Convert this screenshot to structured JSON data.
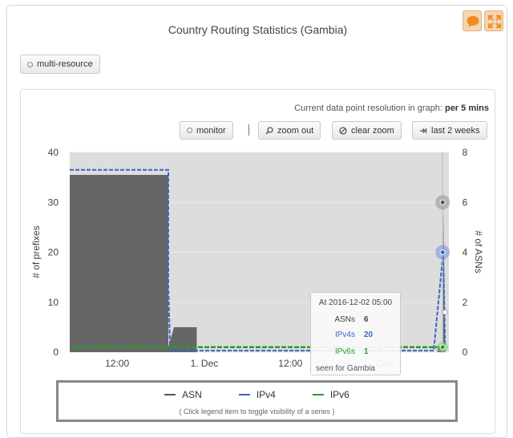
{
  "header": {
    "title": "Country Routing Statistics (Gambia)",
    "feedback_icon": "speech-bubble-icon",
    "fullscreen_icon": "expand-arrows-icon",
    "accent_color": "#f0a04b"
  },
  "toolbar": {
    "multi_resource_label": "multi-resource",
    "resolution_prefix": "Current data point resolution in graph:",
    "resolution_value": "per 5 mins",
    "monitor_label": "monitor",
    "zoom_out_label": "zoom out",
    "clear_zoom_label": "clear zoom",
    "last_2_weeks_label": "last 2 weeks"
  },
  "chart_data": {
    "type": "area",
    "left_axis": {
      "label": "# of prefixes",
      "ticks": [
        0,
        10,
        20,
        30,
        40
      ],
      "range": [
        0,
        40
      ]
    },
    "right_axis": {
      "label": "# of ASNs",
      "ticks": [
        0,
        2,
        4,
        6,
        8
      ],
      "range": [
        0,
        8
      ]
    },
    "x_ticks": [
      "12:00",
      "1. Dec",
      "12:00",
      "Dec"
    ],
    "grid": true,
    "series": [
      {
        "name": "ASN",
        "axis": "right",
        "color": "#666666",
        "points": [
          [
            0,
            7.1
          ],
          [
            0.26,
            7.1
          ],
          [
            0.26,
            0.2
          ],
          [
            0.275,
            1.0
          ],
          [
            0.335,
            1.0
          ],
          [
            0.335,
            0.0
          ],
          [
            0.97,
            0.0
          ],
          [
            0.97,
            0.2
          ],
          [
            0.985,
            0.2
          ],
          [
            0.985,
            6.0
          ],
          [
            0.99,
            0.0
          ]
        ]
      },
      {
        "name": "IPv4",
        "axis": "left",
        "color": "#3b63c4",
        "points": [
          [
            0,
            36.5
          ],
          [
            0.26,
            36.5
          ],
          [
            0.26,
            13.0
          ],
          [
            0.265,
            0.3
          ],
          [
            0.96,
            0.3
          ],
          [
            0.985,
            20.0
          ],
          [
            0.99,
            1.0
          ]
        ]
      },
      {
        "name": "IPv6",
        "axis": "left",
        "color": "#2a9a2a",
        "points": [
          [
            0,
            1.0
          ],
          [
            0.985,
            1.0
          ]
        ]
      }
    ],
    "highlight_markers": {
      "asn": 6,
      "ipv4": 20,
      "ipv6": 1
    }
  },
  "tooltip": {
    "header": "At 2016-12-02 05:00",
    "asn_label": "ASNs",
    "asn_value": "6",
    "ipv4_label": "IPv4s",
    "ipv4_value": "20",
    "ipv6_label": "IPv6s",
    "ipv6_value": "1",
    "footer": "seen for Gambia"
  },
  "legend": {
    "items": [
      {
        "name": "ASN",
        "color": "#555555"
      },
      {
        "name": "IPv4",
        "color": "#3b63c4"
      },
      {
        "name": "IPv6",
        "color": "#2a9a2a"
      }
    ],
    "hint": "( Click legend item to toggle visibility of a series )"
  }
}
